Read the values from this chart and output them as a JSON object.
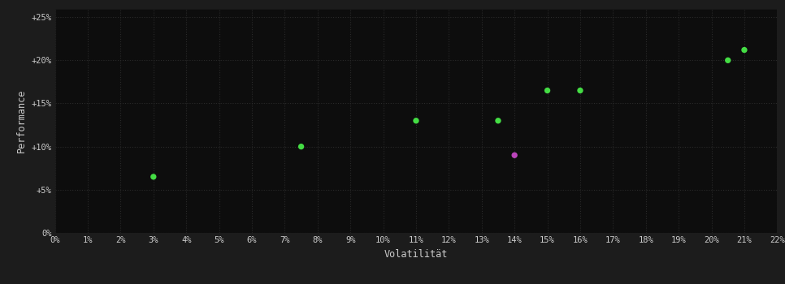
{
  "background_color": "#1c1c1c",
  "plot_bg_color": "#0d0d0d",
  "grid_color": "#2a2a2a",
  "text_color": "#cccccc",
  "xlabel": "Volatilität",
  "ylabel": "Performance",
  "xlim": [
    0.0,
    0.22
  ],
  "ylim": [
    0.0,
    0.26
  ],
  "xtick_step": 0.01,
  "ytick_values": [
    0.0,
    0.05,
    0.1,
    0.15,
    0.2,
    0.25
  ],
  "ytick_labels": [
    "0%",
    "+5%",
    "+10%",
    "+15%",
    "+20%",
    "+25%"
  ],
  "green_points": [
    [
      0.03,
      0.065
    ],
    [
      0.075,
      0.1
    ],
    [
      0.11,
      0.13
    ],
    [
      0.135,
      0.13
    ],
    [
      0.15,
      0.165
    ],
    [
      0.16,
      0.165
    ],
    [
      0.205,
      0.2
    ],
    [
      0.21,
      0.212
    ]
  ],
  "purple_points": [
    [
      0.14,
      0.09
    ]
  ],
  "green_color": "#44dd44",
  "purple_color": "#bb44bb",
  "marker_size": 28,
  "font_size_ticks": 7.5,
  "font_size_labels": 8.5,
  "font_family": "monospace"
}
